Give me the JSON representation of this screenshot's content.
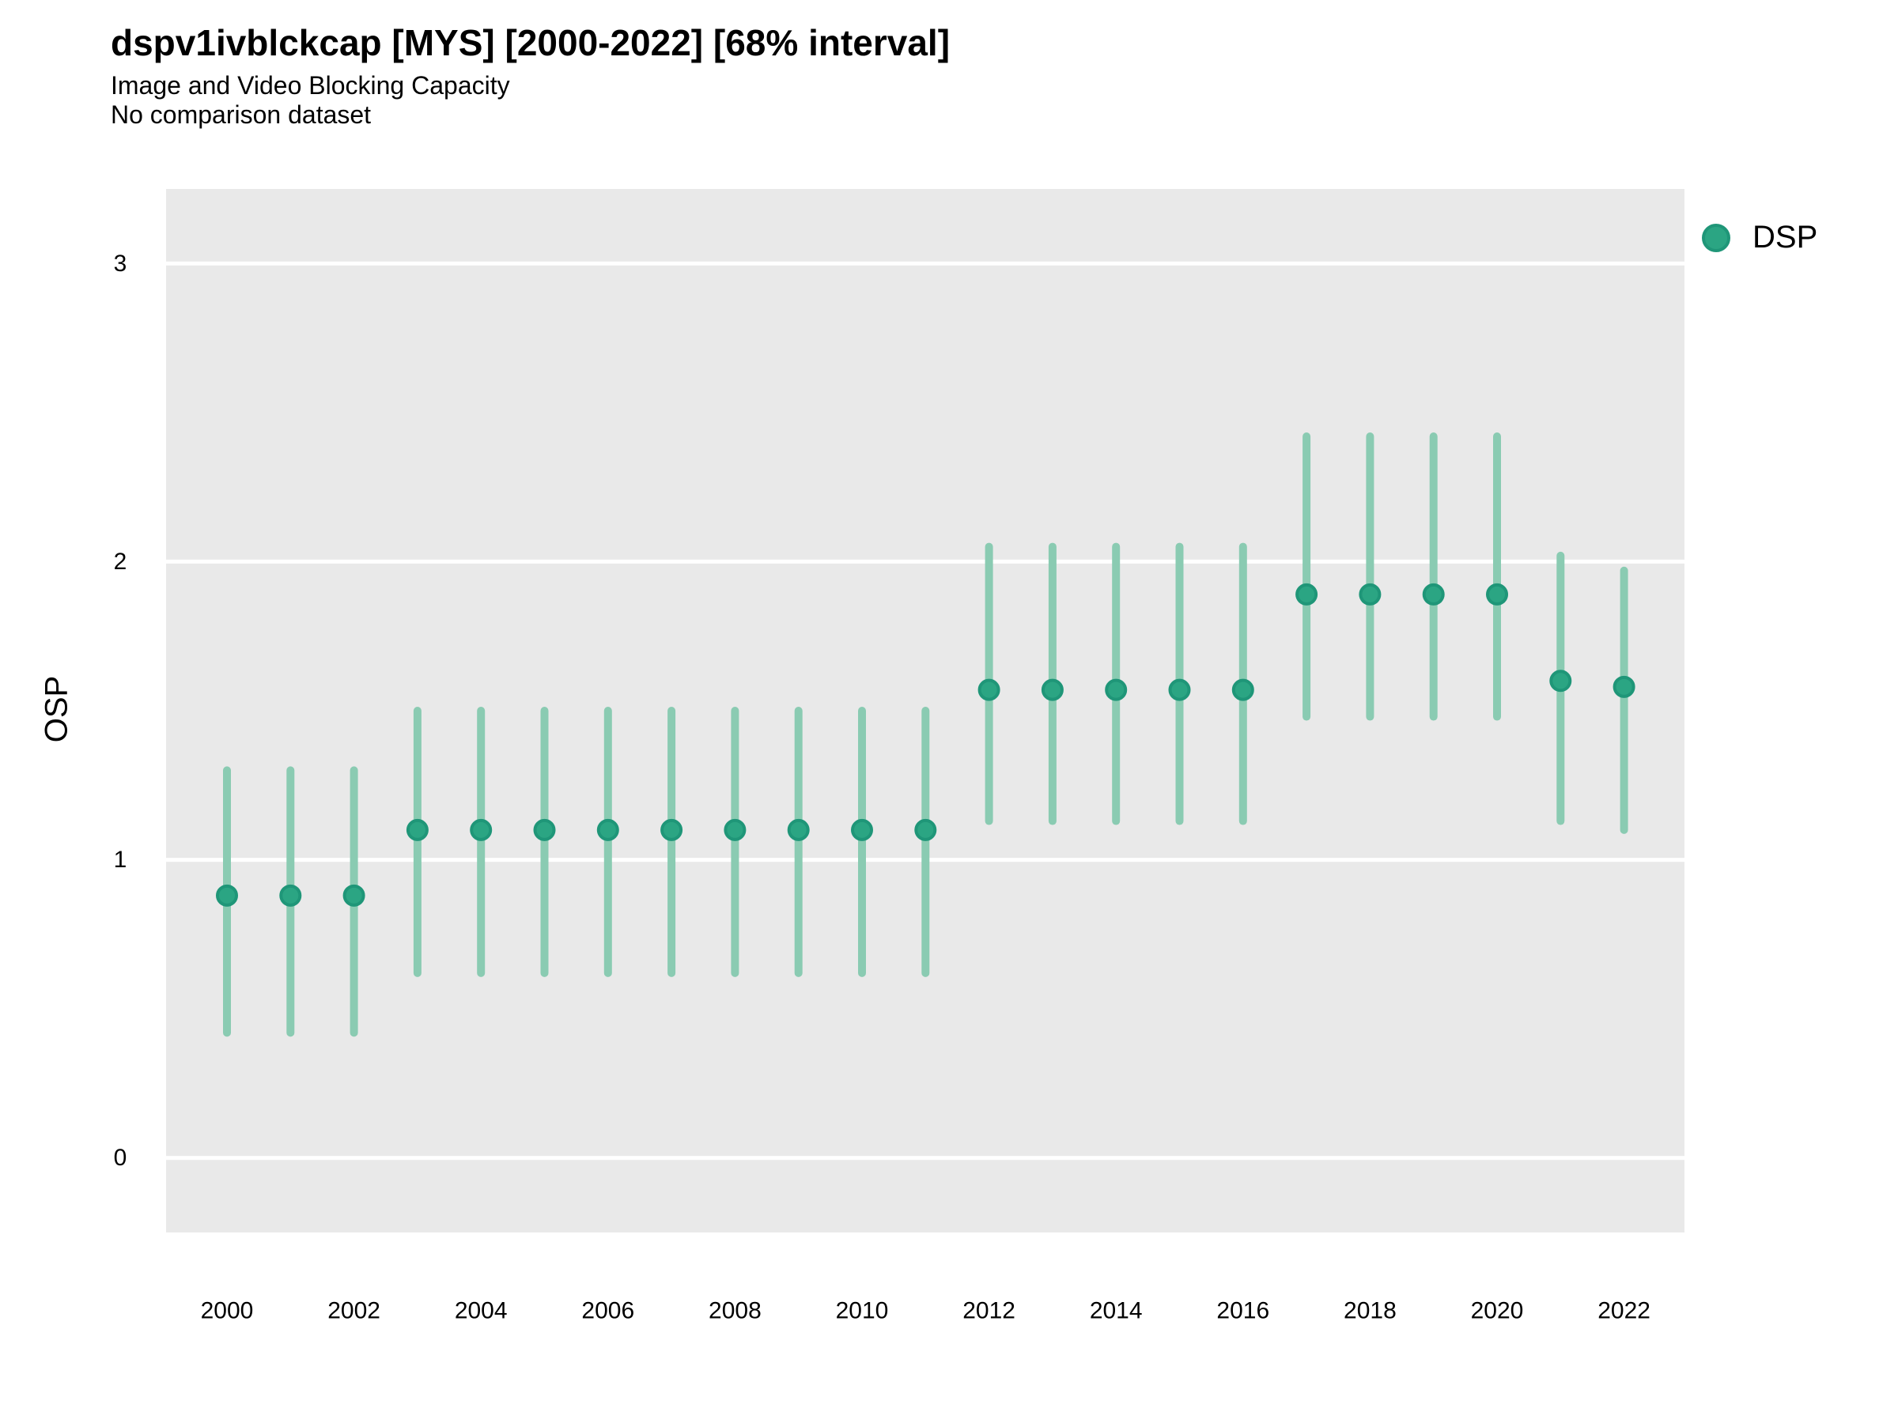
{
  "header": {
    "title": "dspv1ivblckcap [MYS] [2000-2022] [68% interval]",
    "subtitle": "Image and Video Blocking Capacity",
    "comparison_note": "No comparison dataset"
  },
  "legend": {
    "label": "DSP"
  },
  "colors": {
    "panel_bg": "#E9E9E9",
    "gridline": "#FFFFFF",
    "interval_bar": "#8ACBB2",
    "point_fill": "#2BA583",
    "point_stroke": "#1F9678",
    "text": "#000000"
  },
  "chart_data": {
    "type": "scatter",
    "title": "dspv1ivblckcap [MYS] [2000-2022] [68% interval]",
    "subtitle": "Image and Video Blocking Capacity",
    "note": "No comparison dataset",
    "interval": "68%",
    "xlabel": "",
    "ylabel": "OSP",
    "legend_position": "right",
    "grid": "major-y",
    "ylim": [
      -0.25,
      3.25
    ],
    "y_ticks": [
      0,
      1,
      2,
      3
    ],
    "x_ticks": [
      2000,
      2002,
      2004,
      2006,
      2008,
      2010,
      2012,
      2014,
      2016,
      2018,
      2020,
      2022
    ],
    "x": [
      2000,
      2001,
      2002,
      2003,
      2004,
      2005,
      2006,
      2007,
      2008,
      2009,
      2010,
      2011,
      2012,
      2013,
      2014,
      2015,
      2016,
      2017,
      2018,
      2019,
      2020,
      2021,
      2022
    ],
    "series": [
      {
        "name": "DSP",
        "values": [
          0.88,
          0.88,
          0.88,
          1.1,
          1.1,
          1.1,
          1.1,
          1.1,
          1.1,
          1.1,
          1.1,
          1.1,
          1.57,
          1.57,
          1.57,
          1.57,
          1.57,
          1.89,
          1.89,
          1.89,
          1.89,
          1.6,
          1.58
        ],
        "lower": [
          0.42,
          0.42,
          0.42,
          0.62,
          0.62,
          0.62,
          0.62,
          0.62,
          0.62,
          0.62,
          0.62,
          0.62,
          1.13,
          1.13,
          1.13,
          1.13,
          1.13,
          1.48,
          1.48,
          1.48,
          1.48,
          1.13,
          1.1
        ],
        "upper": [
          1.3,
          1.3,
          1.3,
          1.5,
          1.5,
          1.5,
          1.5,
          1.5,
          1.5,
          1.5,
          1.5,
          1.5,
          2.05,
          2.05,
          2.05,
          2.05,
          2.05,
          2.42,
          2.42,
          2.42,
          2.42,
          2.02,
          1.97
        ]
      }
    ]
  }
}
